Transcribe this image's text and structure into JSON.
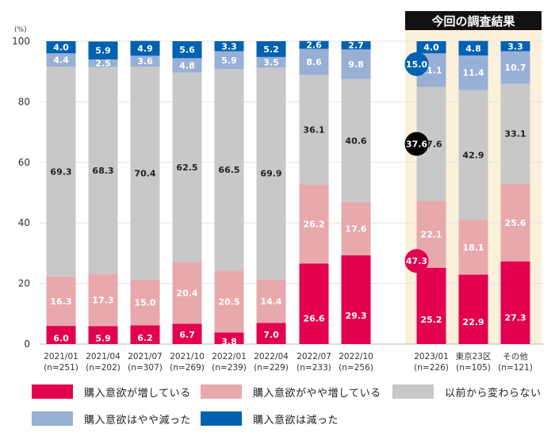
{
  "chart_data": {
    "type": "stacked-bar",
    "y_unit": "(%)",
    "ylim": [
      0,
      100
    ],
    "yticks": [
      0,
      20,
      40,
      60,
      80,
      100
    ],
    "highlight_title": "今回の調査結果",
    "categories": [
      {
        "label": "2021/01",
        "sub": "(n=251)"
      },
      {
        "label": "2021/04",
        "sub": "(n=202)"
      },
      {
        "label": "2021/07",
        "sub": "(n=307)"
      },
      {
        "label": "2021/10",
        "sub": "(n=269)"
      },
      {
        "label": "2022/01",
        "sub": "(n=239)"
      },
      {
        "label": "2022/04",
        "sub": "(n=229)"
      },
      {
        "label": "2022/07",
        "sub": "(n=233)"
      },
      {
        "label": "2022/10",
        "sub": "(n=256)"
      },
      {
        "label": "2023/01",
        "sub": "(n=226)"
      },
      {
        "label": "東京23区",
        "sub": "(n=105)"
      },
      {
        "label": "その他",
        "sub": "(n=121)"
      }
    ],
    "series": [
      {
        "name": "購入意欲が増している",
        "color": "#e2004f",
        "label_color": "#ffffff",
        "values": [
          6.0,
          5.9,
          6.2,
          6.7,
          3.8,
          7.0,
          26.6,
          29.3,
          25.2,
          22.9,
          27.3
        ]
      },
      {
        "name": "購入意欲がやや増している",
        "color": "#e8a9ad",
        "label_color": "#ffffff",
        "values": [
          16.3,
          17.3,
          15.0,
          20.4,
          20.5,
          14.4,
          26.2,
          17.6,
          22.1,
          18.1,
          25.6
        ]
      },
      {
        "name": "以前から変わらない",
        "color": "#c8c8c8",
        "label_color": "#222222",
        "values": [
          69.3,
          68.3,
          70.4,
          62.5,
          66.5,
          69.9,
          36.1,
          40.6,
          37.6,
          42.9,
          33.1
        ]
      },
      {
        "name": "購入意欲はやや減った",
        "color": "#98afd6",
        "label_color": "#ffffff",
        "values": [
          4.4,
          2.5,
          3.6,
          4.8,
          5.9,
          3.5,
          8.6,
          9.8,
          11.1,
          11.4,
          10.7
        ]
      },
      {
        "name": "購入意欲は減った",
        "color": "#0061b1",
        "label_color": "#ffffff",
        "values": [
          4.0,
          5.9,
          4.9,
          5.6,
          3.3,
          5.2,
          2.6,
          2.7,
          4.0,
          4.8,
          3.3
        ]
      }
    ],
    "callouts": [
      {
        "value": "15.0",
        "color": "#0061b1",
        "text_color": "#ffffff"
      },
      {
        "value": "37.6",
        "color": "#000000",
        "text_color": "#ffffff"
      },
      {
        "value": "47.3",
        "color": "#e2004f",
        "text_color": "#ffffff"
      }
    ]
  }
}
